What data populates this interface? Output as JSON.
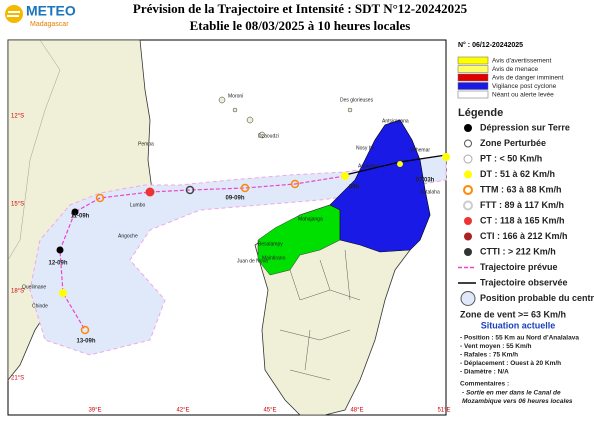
{
  "header": {
    "logo": "METEO",
    "logo_sub": "Madagascar",
    "title": "Prévision de la Trajectoire et Intensité : SDT N°12-20242025",
    "subtitle": "Etablie le 08/03/2025 à 10 heures locales",
    "number": "N° : 06/12-20242025"
  },
  "alerts": [
    "Avis d'avertissement",
    "Avis de menace",
    "Avis de danger imminent",
    "Vigilance post cyclone",
    "Néant ou alerte levée"
  ],
  "legend": {
    "title": "Légende",
    "items": [
      "Dépression sur Terre",
      "Zone Perturbée",
      "PT : < 50 Km/h",
      "DT : 51 à 62 Km/h",
      "TTM : 63 à 88 Km/h",
      "FTT : 89 à 117 Km/h",
      "CT : 118 à 165 Km/h",
      "CTI : 166 à 212 Km/h",
      "CTTI : > 212 Km/h",
      "Trajectoire prévue",
      "Trajectoire observée",
      "Position probable du centre",
      "Zone de vent >= 63 Km/h"
    ]
  },
  "situation": {
    "title": "Situation actuelle",
    "lines": [
      "- Position : 55 Km au Nord d'Analalava",
      "- Vent moyen : 55 Km/h",
      "- Rafales : 75 Km/h",
      "- Déplacement : Ouest à 20 Km/h",
      "- Diamètre : N/A"
    ]
  },
  "comments": {
    "title": "Commentaires :",
    "lines": [
      "- Sortie en mer dans le Canal de",
      "Mozambique vers 06 heures locales"
    ]
  },
  "map": {
    "lat_labels": [
      "12°S",
      "15°S",
      "18°S",
      "21°S"
    ],
    "lon_labels": [
      "39°E",
      "42°E",
      "45°E",
      "48°E",
      "51°E"
    ],
    "track_labels": [
      "07/03h",
      "09h",
      "09-09h",
      "11-09h",
      "12-09h",
      "13-09h"
    ],
    "places": [
      "Moroni",
      "Dzaoudzi",
      "Des glorieuses",
      "Antsiranana",
      "Nosy be",
      "Vohemar",
      "Analalava",
      "Antalaha",
      "Mahajanga",
      "Besalampy",
      "Maintirano",
      "Juan de Nova",
      "Pemba",
      "Lumbo",
      "Angoche",
      "Quelimane",
      "Chinde"
    ]
  }
}
